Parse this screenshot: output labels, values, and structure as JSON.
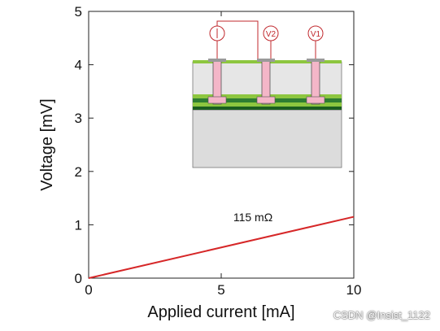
{
  "chart_data": {
    "type": "line",
    "xlabel": "Applied current [mA]",
    "ylabel": "Voltage [mV]",
    "xlim": [
      0,
      10
    ],
    "ylim": [
      0,
      5
    ],
    "x_ticks": [
      0,
      5,
      10
    ],
    "y_ticks": [
      0,
      1,
      2,
      3,
      4,
      5
    ],
    "series": [
      {
        "x": [
          0,
          10
        ],
        "y": [
          0,
          1.15
        ],
        "color": "#d62728"
      }
    ],
    "annotations": [
      {
        "text": "115 mΩ",
        "x": 6.8,
        "y": 1.12
      }
    ],
    "grid": false,
    "legend": "none"
  },
  "inset": {
    "labels": {
      "v2": "V2",
      "v1": "V1"
    },
    "colors": {
      "top_layer": "#8dc63f",
      "pillar": "#f4b6c8",
      "stripe_dark": "#2e7d32",
      "substrate": "#dcdcdc",
      "wire": "#c0282d"
    }
  },
  "watermark": "CSDN @Insist_1122"
}
